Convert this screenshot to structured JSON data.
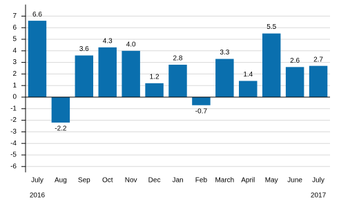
{
  "chart_data": {
    "type": "bar",
    "categories": [
      "July",
      "Aug",
      "Sep",
      "Oct",
      "Nov",
      "Dec",
      "Jan",
      "Feb",
      "March",
      "April",
      "May",
      "June",
      "July"
    ],
    "year_labels": [
      "2016",
      "2017"
    ],
    "values": [
      6.6,
      -2.2,
      3.6,
      4.3,
      4.0,
      1.2,
      2.8,
      -0.7,
      3.3,
      1.4,
      5.5,
      2.6,
      2.7
    ],
    "value_labels": [
      "6.6",
      "-2.2",
      "3.6",
      "4.3",
      "4.0",
      "1.2",
      "2.8",
      "-0.7",
      "3.3",
      "1.4",
      "5.5",
      "2.6",
      "2.7"
    ],
    "color": "#0a6fae",
    "ylim": [
      -6.5,
      8
    ],
    "yticks": [
      -6,
      -5,
      -4,
      -3,
      -2,
      -1,
      0,
      1,
      2,
      3,
      4,
      5,
      6,
      7
    ],
    "grid": true
  }
}
